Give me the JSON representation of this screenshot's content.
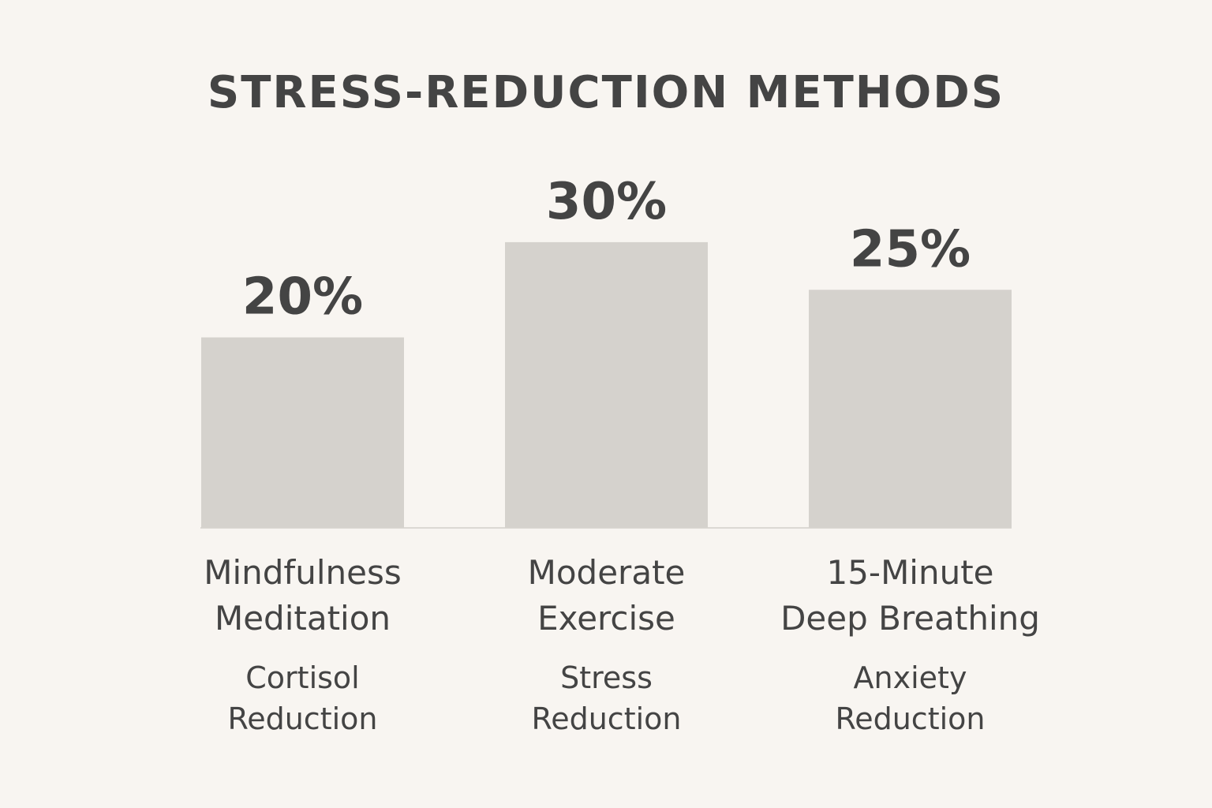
{
  "chart_data": {
    "type": "bar",
    "title": "STRESS-REDUCTION METHODS",
    "xlabel": "",
    "ylabel": "",
    "ylim": [
      0,
      30
    ],
    "grid": false,
    "categories": [
      [
        "Mindfulness",
        "Meditation"
      ],
      [
        "Moderate",
        "Exercise"
      ],
      [
        "15-Minute",
        "Deep Breathing"
      ]
    ],
    "sublabels": [
      [
        "Cortisol",
        "Reduction"
      ],
      [
        "Stress",
        "Reduction"
      ],
      [
        "Anxiety",
        "Reduction"
      ]
    ],
    "values": [
      20,
      30,
      25
    ],
    "value_labels": [
      "20%",
      "30%",
      "25%"
    ]
  },
  "colors": {
    "background": "#f8f5f1",
    "bar": "#d5d2cd",
    "text": "#444444",
    "baseline": "#dcd9d4"
  }
}
